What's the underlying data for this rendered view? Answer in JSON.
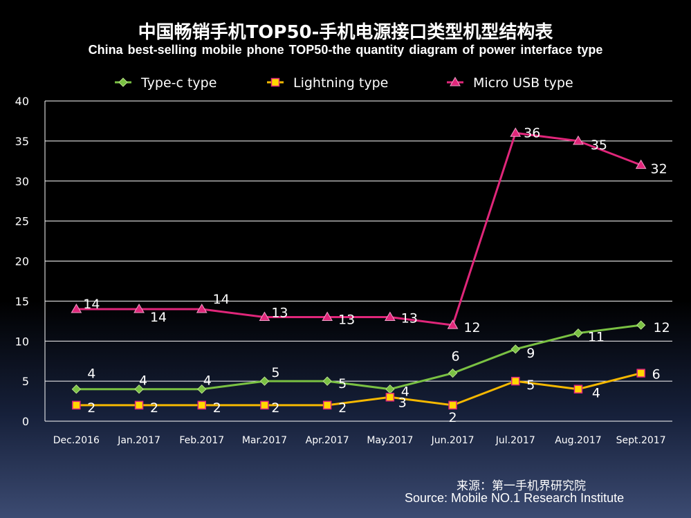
{
  "title_cn": "中国畅销手机TOP50-手机电源接口类型机型结构表",
  "title_en": "China best-selling mobile phone TOP50-the quantity diagram of power interface type",
  "source_cn": "来源：第一手机界研究院",
  "source_en": "Source: Mobile NO.1 Research Institute",
  "chart_data": {
    "type": "line",
    "title": "中国畅销手机TOP50-手机电源接口类型机型结构表",
    "subtitle": "China best-selling mobile phone TOP50-the quantity diagram of power interface type",
    "xlabel": "",
    "ylabel": "",
    "categories": [
      "Dec.2016",
      "Jan.2017",
      "Feb.2017",
      "Mar.2017",
      "Apr.2017",
      "May.2017",
      "Jun.2017",
      "Jul.2017",
      "Aug.2017",
      "Sept.2017"
    ],
    "ylim": [
      0,
      40
    ],
    "yticks": [
      0,
      5,
      10,
      15,
      20,
      25,
      30,
      35,
      40
    ],
    "grid": true,
    "legend_position": "top",
    "series": [
      {
        "name": "Type-c type",
        "values": [
          4,
          4,
          4,
          5,
          5,
          4,
          6,
          9,
          11,
          12
        ],
        "color": "#7ac143",
        "marker": "diamond"
      },
      {
        "name": "Lightning type",
        "values": [
          2,
          2,
          2,
          2,
          2,
          3,
          2,
          5,
          4,
          6
        ],
        "color": "#f5b800",
        "marker": "square"
      },
      {
        "name": "Micro USB type",
        "values": [
          14,
          14,
          14,
          13,
          13,
          13,
          12,
          36,
          35,
          32
        ],
        "color": "#e0267a",
        "marker": "triangle"
      }
    ]
  }
}
